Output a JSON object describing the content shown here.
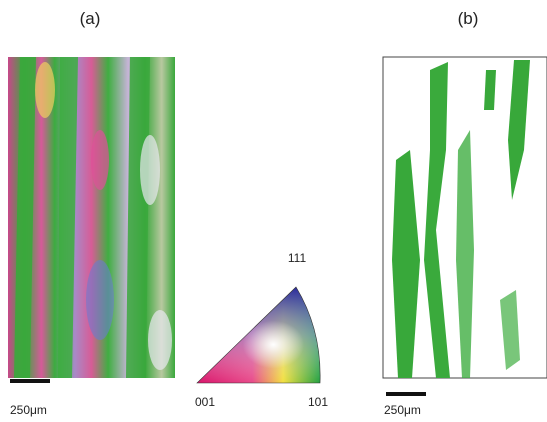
{
  "panels": [
    {
      "label": "(a)",
      "scale_bar": "250μm"
    },
    {
      "label": "(b)",
      "scale_bar": "250μm"
    }
  ],
  "legend": {
    "top": "111",
    "left": "001",
    "right": "101"
  }
}
